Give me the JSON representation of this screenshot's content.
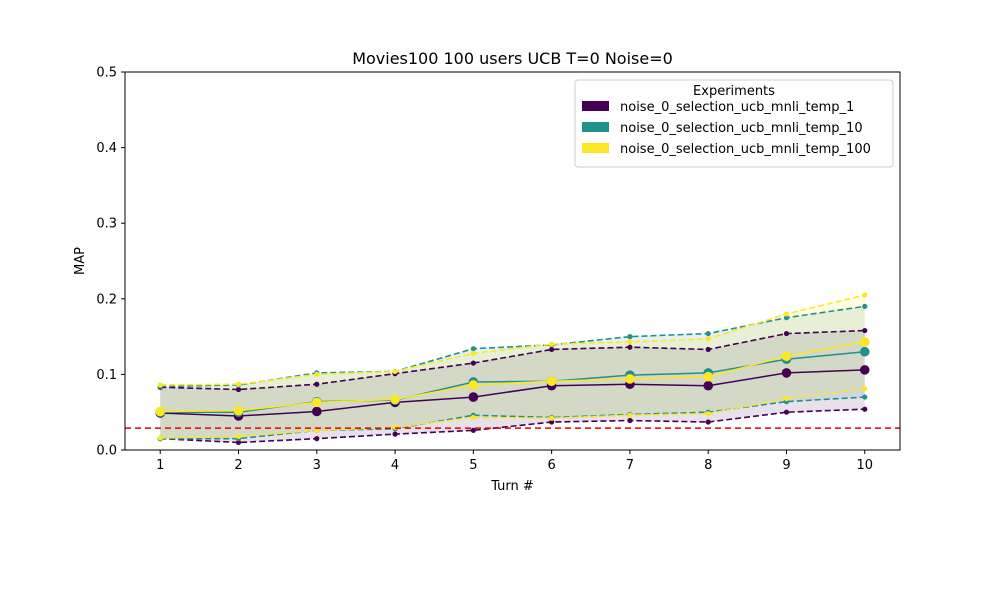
{
  "chart_data": {
    "type": "line",
    "title": "Movies100 100 users UCB T=0 Noise=0",
    "xlabel": "Turn #",
    "ylabel": "MAP",
    "xlim": [
      0.55,
      10.45
    ],
    "ylim": [
      0,
      0.5
    ],
    "x": [
      1,
      2,
      3,
      4,
      5,
      6,
      7,
      8,
      9,
      10
    ],
    "x_ticks": [
      "1",
      "2",
      "3",
      "4",
      "5",
      "6",
      "7",
      "8",
      "9",
      "10"
    ],
    "y_ticks": [
      "0.0",
      "0.1",
      "0.2",
      "0.3",
      "0.4",
      "0.5"
    ],
    "grid": false,
    "legend": {
      "title": "Experiments",
      "position": "top-right"
    },
    "baseline": {
      "value": 0.029,
      "color": "#e00000",
      "style": "dashed"
    },
    "series": [
      {
        "name": "noise_0_selection_ucb_mnli_temp_1",
        "color": "#440154",
        "mean": [
          0.049,
          0.045,
          0.051,
          0.063,
          0.07,
          0.085,
          0.087,
          0.085,
          0.102,
          0.106
        ],
        "upper": [
          0.083,
          0.08,
          0.087,
          0.101,
          0.115,
          0.133,
          0.136,
          0.133,
          0.154,
          0.158
        ],
        "lower": [
          0.015,
          0.01,
          0.015,
          0.021,
          0.026,
          0.037,
          0.039,
          0.037,
          0.05,
          0.054
        ]
      },
      {
        "name": "noise_0_selection_ucb_mnli_temp_10",
        "color": "#21918c",
        "mean": [
          0.05,
          0.05,
          0.064,
          0.066,
          0.09,
          0.091,
          0.099,
          0.102,
          0.12,
          0.13
        ],
        "upper": [
          0.084,
          0.086,
          0.102,
          0.104,
          0.134,
          0.139,
          0.15,
          0.154,
          0.175,
          0.19
        ],
        "lower": [
          0.015,
          0.015,
          0.026,
          0.028,
          0.046,
          0.043,
          0.047,
          0.05,
          0.064,
          0.07
        ]
      },
      {
        "name": "noise_0_selection_ucb_mnli_temp_100",
        "color": "#fde725",
        "mean": [
          0.051,
          0.052,
          0.063,
          0.067,
          0.086,
          0.091,
          0.094,
          0.097,
          0.124,
          0.143
        ],
        "upper": [
          0.086,
          0.087,
          0.1,
          0.104,
          0.128,
          0.14,
          0.143,
          0.147,
          0.18,
          0.205
        ],
        "lower": [
          0.016,
          0.018,
          0.026,
          0.03,
          0.043,
          0.042,
          0.046,
          0.048,
          0.068,
          0.081
        ]
      }
    ]
  }
}
